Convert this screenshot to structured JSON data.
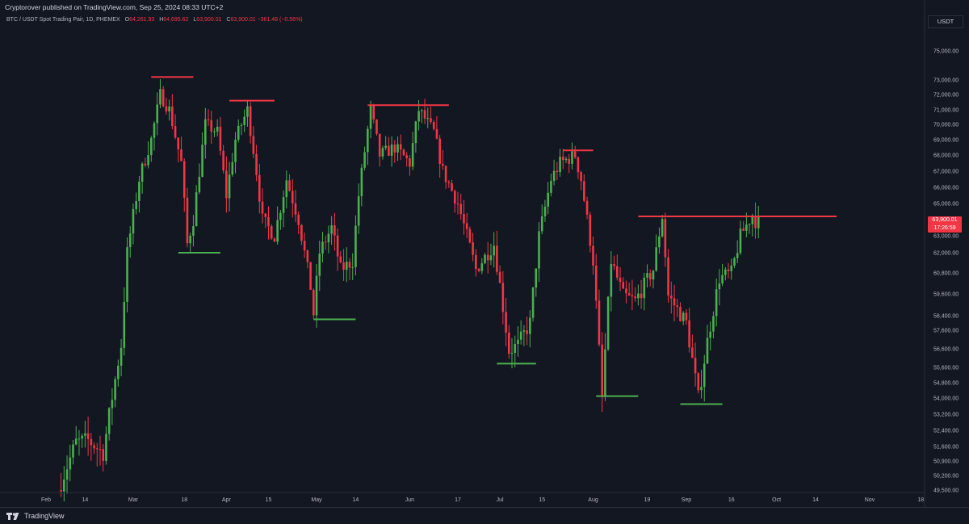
{
  "publisher": "Cryptorover published on TradingView.com, Sep 25, 2024 08:33 UTC+2",
  "symbol": {
    "name": "BTC / USDT Spot Trading Pair, 1D, PHEMEX",
    "open_label": "O",
    "open": "64,261.93",
    "high_label": "H",
    "high": "64,695.62",
    "low_label": "L",
    "low": "63,900.01",
    "close_label": "C",
    "close": "63,900.01",
    "change": "−361.48 (−0.56%)"
  },
  "currency": "USDT",
  "price_badge": {
    "price": "63,900.01",
    "countdown": "17:26:59",
    "color": "#f23645"
  },
  "brand": "TradingView",
  "colors": {
    "background": "#131722",
    "up": "#4caf50",
    "down": "#f23645",
    "resistance": "#f23645",
    "support": "#4caf50",
    "grid": "#2a2e39"
  },
  "chart_data": {
    "type": "candlestick",
    "timeframe": "1D",
    "x_start": "2024-01-29",
    "x_ticks": [
      {
        "label": "Feb",
        "date": "2024-02-01"
      },
      {
        "label": "14",
        "date": "2024-02-14"
      },
      {
        "label": "Mar",
        "date": "2024-03-01"
      },
      {
        "label": "18",
        "date": "2024-03-18"
      },
      {
        "label": "Apr",
        "date": "2024-04-01"
      },
      {
        "label": "15",
        "date": "2024-04-15"
      },
      {
        "label": "May",
        "date": "2024-05-01"
      },
      {
        "label": "14",
        "date": "2024-05-14"
      },
      {
        "label": "Jun",
        "date": "2024-06-01"
      },
      {
        "label": "17",
        "date": "2024-06-17"
      },
      {
        "label": "Jul",
        "date": "2024-07-01"
      },
      {
        "label": "15",
        "date": "2024-07-15"
      },
      {
        "label": "Aug",
        "date": "2024-08-01"
      },
      {
        "label": "19",
        "date": "2024-08-19"
      },
      {
        "label": "Sep",
        "date": "2024-09-01"
      },
      {
        "label": "16",
        "date": "2024-09-16"
      },
      {
        "label": "Oct",
        "date": "2024-10-01"
      },
      {
        "label": "14",
        "date": "2024-10-14"
      },
      {
        "label": "Nov",
        "date": "2024-11-01"
      },
      {
        "label": "18",
        "date": "2024-11-18"
      }
    ],
    "y_ticks": [
      {
        "label": "75,000.00",
        "value": 75000
      },
      {
        "label": "73,000.00",
        "value": 73000
      },
      {
        "label": "72,000.00",
        "value": 72000
      },
      {
        "label": "71,000.00",
        "value": 71000
      },
      {
        "label": "70,000.00",
        "value": 70000
      },
      {
        "label": "69,000.00",
        "value": 69000
      },
      {
        "label": "68,000.00",
        "value": 68000
      },
      {
        "label": "67,000.00",
        "value": 67000
      },
      {
        "label": "66,000.00",
        "value": 66000
      },
      {
        "label": "65,000.00",
        "value": 65000
      },
      {
        "label": "63,000.00",
        "value": 63000
      },
      {
        "label": "62,000.00",
        "value": 62000
      },
      {
        "label": "60,800.00",
        "value": 60800
      },
      {
        "label": "59,600.00",
        "value": 59600
      },
      {
        "label": "58,400.00",
        "value": 58400
      },
      {
        "label": "57,600.00",
        "value": 57600
      },
      {
        "label": "56,600.00",
        "value": 56600
      },
      {
        "label": "55,600.00",
        "value": 55600
      },
      {
        "label": "54,800.00",
        "value": 54800
      },
      {
        "label": "54,000.00",
        "value": 54000
      },
      {
        "label": "53,200.00",
        "value": 53200
      },
      {
        "label": "52,400.00",
        "value": 52400
      },
      {
        "label": "51,600.00",
        "value": 51600
      },
      {
        "label": "50,900.00",
        "value": 50900
      },
      {
        "label": "50,200.00",
        "value": 50200
      },
      {
        "label": "49,500.00",
        "value": 49500
      }
    ],
    "ohlc_points": [
      {
        "date": "2024-02-06",
        "price": 49500
      },
      {
        "date": "2024-02-12",
        "price": 51800
      },
      {
        "date": "2024-02-16",
        "price": 51900
      },
      {
        "date": "2024-02-21",
        "price": 51300
      },
      {
        "date": "2024-02-27",
        "price": 56800
      },
      {
        "date": "2024-02-29",
        "price": 62000
      },
      {
        "date": "2024-03-04",
        "price": 66500
      },
      {
        "date": "2024-03-08",
        "price": 69000
      },
      {
        "date": "2024-03-11",
        "price": 72000
      },
      {
        "date": "2024-03-14",
        "price": 71000
      },
      {
        "date": "2024-03-18",
        "price": 67500
      },
      {
        "date": "2024-03-20",
        "price": 62500
      },
      {
        "date": "2024-03-22",
        "price": 64000
      },
      {
        "date": "2024-03-26",
        "price": 70000
      },
      {
        "date": "2024-03-30",
        "price": 69500
      },
      {
        "date": "2024-04-02",
        "price": 65500
      },
      {
        "date": "2024-04-05",
        "price": 69000
      },
      {
        "date": "2024-04-09",
        "price": 71000
      },
      {
        "date": "2024-04-12",
        "price": 67000
      },
      {
        "date": "2024-04-14",
        "price": 64000
      },
      {
        "date": "2024-04-18",
        "price": 63000
      },
      {
        "date": "2024-04-22",
        "price": 66500
      },
      {
        "date": "2024-04-26",
        "price": 64000
      },
      {
        "date": "2024-04-30",
        "price": 60000
      },
      {
        "date": "2024-05-01",
        "price": 58500
      },
      {
        "date": "2024-05-03",
        "price": 62000
      },
      {
        "date": "2024-05-07",
        "price": 63500
      },
      {
        "date": "2024-05-10",
        "price": 61000
      },
      {
        "date": "2024-05-14",
        "price": 61500
      },
      {
        "date": "2024-05-16",
        "price": 65500
      },
      {
        "date": "2024-05-20",
        "price": 71000
      },
      {
        "date": "2024-05-23",
        "price": 68000
      },
      {
        "date": "2024-05-28",
        "price": 68500
      },
      {
        "date": "2024-06-02",
        "price": 67500
      },
      {
        "date": "2024-06-05",
        "price": 71000
      },
      {
        "date": "2024-06-10",
        "price": 69500
      },
      {
        "date": "2024-06-13",
        "price": 67000
      },
      {
        "date": "2024-06-18",
        "price": 65000
      },
      {
        "date": "2024-06-24",
        "price": 61000
      },
      {
        "date": "2024-06-30",
        "price": 62500
      },
      {
        "date": "2024-07-05",
        "price": 56500
      },
      {
        "date": "2024-07-08",
        "price": 56800
      },
      {
        "date": "2024-07-12",
        "price": 58000
      },
      {
        "date": "2024-07-15",
        "price": 63000
      },
      {
        "date": "2024-07-19",
        "price": 66500
      },
      {
        "date": "2024-07-22",
        "price": 67500
      },
      {
        "date": "2024-07-27",
        "price": 68000
      },
      {
        "date": "2024-07-29",
        "price": 66500
      },
      {
        "date": "2024-08-02",
        "price": 61500
      },
      {
        "date": "2024-08-05",
        "price": 54000
      },
      {
        "date": "2024-08-08",
        "price": 61500
      },
      {
        "date": "2024-08-12",
        "price": 59500
      },
      {
        "date": "2024-08-16",
        "price": 59200
      },
      {
        "date": "2024-08-22",
        "price": 61000
      },
      {
        "date": "2024-08-25",
        "price": 64200
      },
      {
        "date": "2024-08-27",
        "price": 59500
      },
      {
        "date": "2024-09-02",
        "price": 58000
      },
      {
        "date": "2024-09-06",
        "price": 54000
      },
      {
        "date": "2024-09-09",
        "price": 57000
      },
      {
        "date": "2024-09-13",
        "price": 60500
      },
      {
        "date": "2024-09-17",
        "price": 60800
      },
      {
        "date": "2024-09-20",
        "price": 63000
      },
      {
        "date": "2024-09-24",
        "price": 64300
      },
      {
        "date": "2024-09-25",
        "price": 63900
      }
    ],
    "resistance_lines": [
      {
        "price": 73200,
        "from": "2024-03-07",
        "to": "2024-03-21"
      },
      {
        "price": 71600,
        "from": "2024-04-02",
        "to": "2024-04-17"
      },
      {
        "price": 71300,
        "from": "2024-05-18",
        "to": "2024-06-14"
      },
      {
        "price": 68300,
        "from": "2024-07-22",
        "to": "2024-08-01"
      },
      {
        "price": 64200,
        "from": "2024-08-16",
        "to": "2024-10-21"
      }
    ],
    "support_lines": [
      {
        "price": 62000,
        "from": "2024-03-16",
        "to": "2024-03-30"
      },
      {
        "price": 58200,
        "from": "2024-04-30",
        "to": "2024-05-14"
      },
      {
        "price": 55800,
        "from": "2024-06-30",
        "to": "2024-07-13"
      },
      {
        "price": 54100,
        "from": "2024-08-02",
        "to": "2024-08-16"
      },
      {
        "price": 53700,
        "from": "2024-08-30",
        "to": "2024-09-13"
      }
    ]
  }
}
